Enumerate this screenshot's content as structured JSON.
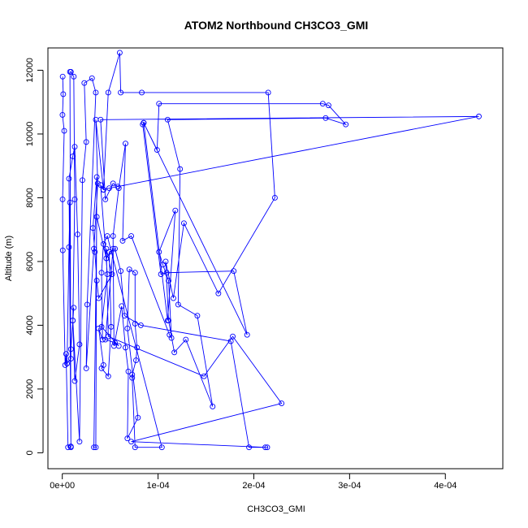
{
  "chart_data": {
    "type": "line",
    "title": "ATOM2 Northbound CH3CO3_GMI",
    "xlabel": "CH3CO3_GMI",
    "ylabel": "Altitude (m)",
    "xlim": [
      -1.5e-05,
      0.00046
    ],
    "ylim": [
      -500,
      12700
    ],
    "x_ticks": [
      0,
      0.0001,
      0.0002,
      0.0003,
      0.0004
    ],
    "x_tick_labels": [
      "0e+00",
      "1e-04",
      "2e-04",
      "3e-04",
      "4e-04"
    ],
    "y_ticks": [
      0,
      2000,
      4000,
      6000,
      8000,
      10000,
      12000
    ],
    "y_tick_labels": [
      "0",
      "2000",
      "4000",
      "6000",
      "8000",
      "10000",
      "12000"
    ],
    "grid": false,
    "series": [
      {
        "color": "#0000ff",
        "marker": "open-circle",
        "points": [
          [
            4e-07,
            11800
          ],
          [
            1e-06,
            11250
          ],
          [
            2e-07,
            10600
          ],
          [
            2e-06,
            10100
          ],
          [
            3e-07,
            7950
          ],
          [
            5e-07,
            6350
          ],
          [
            3e-06,
            2750
          ],
          [
            4e-06,
            3100
          ],
          [
            6e-06,
            170
          ],
          [
            9e-06,
            170
          ],
          [
            7e-06,
            8600
          ],
          [
            1.1e-05,
            9300
          ],
          [
            1.3e-05,
            9600
          ],
          [
            1.6e-05,
            6850
          ],
          [
            1.8e-05,
            3400
          ],
          [
            1.3e-05,
            2250
          ],
          [
            1.1e-05,
            4150
          ],
          [
            1.2e-05,
            4550
          ],
          [
            9e-06,
            3250
          ],
          [
            9e-06,
            2950
          ],
          [
            5e-06,
            2800
          ],
          [
            7e-06,
            6450
          ],
          [
            8e-06,
            7850
          ],
          [
            9e-06,
            200
          ],
          [
            8e-06,
            11950
          ],
          [
            9e-06,
            11950
          ],
          [
            1.2e-05,
            11800
          ],
          [
            1.3e-05,
            7950
          ],
          [
            1.1e-05,
            4150
          ],
          [
            1.8e-05,
            350
          ],
          [
            2.1e-05,
            8550
          ],
          [
            2.5e-05,
            9750
          ],
          [
            2.3e-05,
            11600
          ],
          [
            3.1e-05,
            11750
          ],
          [
            3.5e-05,
            11300
          ],
          [
            2.6e-05,
            4650
          ],
          [
            2.5e-05,
            2650
          ],
          [
            3.3e-05,
            6400
          ],
          [
            3.7e-05,
            8450
          ],
          [
            3.5e-05,
            10450
          ],
          [
            4.3e-05,
            8250
          ],
          [
            4.8e-05,
            11300
          ],
          [
            6e-05,
            12550
          ],
          [
            6.1e-05,
            11300
          ],
          [
            8.3e-05,
            11300
          ],
          [
            0.000215,
            11300
          ],
          [
            0.000222,
            8000
          ],
          [
            0.000163,
            5000
          ],
          [
            0.000127,
            7200
          ],
          [
            0.000116,
            4850
          ],
          [
            0.000108,
            6000
          ],
          [
            0.000111,
            4150
          ],
          [
            0.000117,
            3150
          ],
          [
            0.000129,
            3550
          ],
          [
            0.000157,
            1450
          ],
          [
            0.000141,
            4300
          ],
          [
            0.000121,
            4650
          ],
          [
            0.000123,
            8900
          ],
          [
            0.00011,
            10450
          ],
          [
            0.000275,
            10500
          ],
          [
            0.000296,
            10300
          ],
          [
            0.000278,
            10900
          ],
          [
            0.000272,
            10950
          ],
          [
            0.000101,
            10950
          ],
          [
            9.9e-05,
            9500
          ],
          [
            8.5e-05,
            10350
          ],
          [
            8.4e-05,
            10300
          ],
          [
            0.000103,
            5600
          ],
          [
            0.000109,
            5650
          ],
          [
            0.000179,
            5700
          ],
          [
            0.000193,
            3700
          ],
          [
            8.5e-05,
            10350
          ],
          [
            0.00011,
            4150
          ],
          [
            0.000118,
            7600
          ],
          [
            0.000101,
            6300
          ],
          [
            0.000105,
            5900
          ],
          [
            0.000111,
            5400
          ],
          [
            0.000114,
            3600
          ],
          [
            0.000112,
            3700
          ],
          [
            7.2e-05,
            6800
          ],
          [
            6.3e-05,
            6650
          ],
          [
            6.6e-05,
            9700
          ],
          [
            5.9e-05,
            8300
          ],
          [
            5.3e-05,
            6800
          ],
          [
            5.4e-05,
            3350
          ],
          [
            6.2e-05,
            4600
          ],
          [
            6.6e-05,
            3300
          ],
          [
            6.9e-05,
            2550
          ],
          [
            6.8e-05,
            450
          ],
          [
            7.9e-05,
            1100
          ],
          [
            6.8e-05,
            3900
          ],
          [
            7e-05,
            5750
          ],
          [
            7.6e-05,
            5650
          ],
          [
            7.6e-05,
            4050
          ],
          [
            7.8e-05,
            3300
          ],
          [
            7.7e-05,
            2900
          ],
          [
            7.3e-05,
            2450
          ],
          [
            7.3e-05,
            2350
          ],
          [
            7.6e-05,
            170
          ],
          [
            0.000104,
            170
          ],
          [
            4.7e-05,
            6800
          ],
          [
            4.3e-05,
            6550
          ],
          [
            4.1e-05,
            5650
          ],
          [
            4.2e-05,
            3550
          ],
          [
            3.8e-05,
            3900
          ],
          [
            4.3e-05,
            2750
          ],
          [
            4.1e-05,
            2650
          ],
          [
            4.8e-05,
            2400
          ],
          [
            5.1e-05,
            3950
          ],
          [
            4.9e-05,
            6300
          ],
          [
            5.5e-05,
            6400
          ],
          [
            6.1e-05,
            5700
          ],
          [
            6.5e-05,
            4300
          ],
          [
            8.2e-05,
            4000
          ],
          [
            0.000176,
            3500
          ],
          [
            0.000195,
            170
          ],
          [
            0.000214,
            170
          ],
          [
            0.000212,
            170
          ],
          [
            7.2e-05,
            350
          ],
          [
            0.000229,
            1550
          ],
          [
            0.000178,
            3650
          ],
          [
            0.000148,
            2400
          ],
          [
            4.8e-05,
            3650
          ],
          [
            4.6e-05,
            6400
          ],
          [
            5.2e-05,
            5600
          ],
          [
            3.8e-05,
            4850
          ],
          [
            3.6e-05,
            5400
          ],
          [
            3.4e-05,
            6300
          ],
          [
            3.2e-05,
            7050
          ],
          [
            3.6e-05,
            8650
          ],
          [
            3.5e-05,
            170
          ],
          [
            3.3e-05,
            170
          ],
          [
            3.6e-05,
            7400
          ],
          [
            4.6e-05,
            6100
          ],
          [
            5.3e-05,
            6400
          ],
          [
            4.5e-05,
            3550
          ],
          [
            5.5e-05,
            3450
          ],
          [
            5.9e-05,
            3350
          ],
          [
            4.1e-05,
            3950
          ],
          [
            4.7e-05,
            5600
          ],
          [
            4e-05,
            8400
          ],
          [
            4.3e-05,
            8250
          ],
          [
            4.9e-05,
            8300
          ],
          [
            0.000435,
            10550
          ],
          [
            4e-05,
            10450
          ],
          [
            4.5e-05,
            7950
          ],
          [
            5.3e-05,
            8450
          ],
          [
            5.8e-05,
            8350
          ]
        ]
      }
    ]
  }
}
